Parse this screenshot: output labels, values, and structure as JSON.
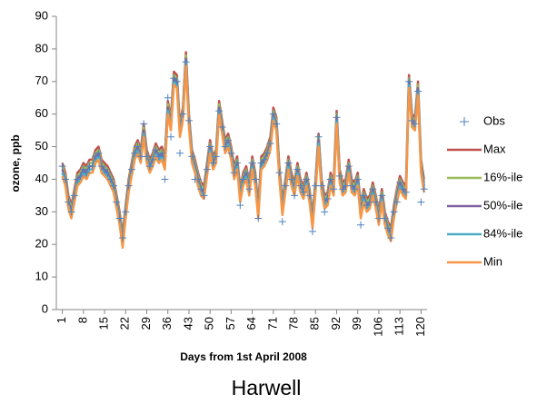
{
  "chart_data": {
    "type": "line",
    "y_label": "ozone, ppb",
    "x_label": "Days from 1st April 2008",
    "caption": "Harwell",
    "x": [
      1,
      2,
      3,
      4,
      5,
      6,
      7,
      8,
      9,
      10,
      11,
      12,
      13,
      14,
      15,
      16,
      17,
      18,
      19,
      20,
      21,
      22,
      23,
      24,
      25,
      26,
      27,
      28,
      29,
      30,
      31,
      32,
      33,
      34,
      35,
      36,
      37,
      38,
      39,
      40,
      41,
      42,
      43,
      44,
      45,
      46,
      47,
      48,
      49,
      50,
      51,
      52,
      53,
      54,
      55,
      56,
      57,
      58,
      59,
      60,
      61,
      62,
      63,
      64,
      65,
      66,
      67,
      68,
      69,
      70,
      71,
      72,
      73,
      74,
      75,
      76,
      77,
      78,
      79,
      80,
      81,
      82,
      83,
      84,
      85,
      86,
      87,
      88,
      89,
      90,
      91,
      92,
      93,
      94,
      95,
      96,
      97,
      98,
      99,
      100,
      101,
      102,
      103,
      104,
      105,
      106,
      107,
      108,
      109,
      110,
      111,
      112,
      113,
      114,
      115,
      116,
      117,
      118,
      119,
      120,
      121
    ],
    "xlim": [
      -1,
      122
    ],
    "xticks": [
      1,
      8,
      15,
      22,
      29,
      36,
      43,
      50,
      57,
      64,
      71,
      78,
      85,
      92,
      99,
      106,
      113,
      120
    ],
    "ylim": [
      0,
      90
    ],
    "yticks": [
      0,
      10,
      20,
      30,
      40,
      50,
      60,
      70,
      80,
      90
    ],
    "grid": false,
    "legend": "right",
    "series": [
      {
        "name": "Obs",
        "mode": "markers",
        "color": "#4f81bd",
        "values": [
          44,
          40,
          33,
          30,
          35,
          40,
          41,
          43,
          42,
          44,
          44,
          47,
          48,
          44,
          43,
          42,
          40,
          38,
          33,
          28,
          22,
          30,
          38,
          43,
          48,
          50,
          47,
          57,
          47,
          44,
          46,
          49,
          47,
          48,
          40,
          65,
          53,
          71,
          70,
          48,
          60,
          76,
          58,
          47,
          40,
          40,
          37,
          35,
          43,
          50,
          45,
          47,
          61,
          56,
          50,
          52,
          48,
          42,
          45,
          32,
          40,
          42,
          37,
          45,
          40,
          28,
          45,
          46,
          48,
          51,
          60,
          57,
          42,
          27,
          38,
          45,
          40,
          35,
          43,
          38,
          36,
          40,
          35,
          24,
          38,
          53,
          38,
          30,
          34,
          40,
          37,
          59,
          41,
          37,
          38,
          44,
          38,
          37,
          40,
          26,
          35,
          32,
          33,
          37,
          33,
          28,
          35,
          28,
          25,
          22,
          30,
          33,
          39,
          37,
          36,
          70,
          58,
          57,
          67,
          33,
          37
        ]
      },
      {
        "name": "Max",
        "mode": "line",
        "color": "#c0504d",
        "values": [
          45,
          42,
          35,
          32,
          37,
          42,
          43,
          45,
          44,
          46,
          46,
          49,
          50,
          46,
          45,
          44,
          42,
          40,
          35,
          30,
          23,
          32,
          40,
          45,
          50,
          52,
          49,
          57,
          49,
          46,
          48,
          51,
          49,
          50,
          47,
          64,
          59,
          73,
          72,
          57,
          62,
          79,
          60,
          49,
          46,
          42,
          39,
          38,
          45,
          52,
          47,
          49,
          64,
          58,
          52,
          54,
          50,
          44,
          47,
          37,
          42,
          44,
          39,
          47,
          42,
          32,
          47,
          48,
          50,
          53,
          62,
          59,
          44,
          33,
          40,
          47,
          42,
          39,
          45,
          40,
          38,
          42,
          37,
          29,
          40,
          54,
          40,
          35,
          36,
          42,
          39,
          61,
          43,
          39,
          40,
          46,
          40,
          39,
          42,
          32,
          37,
          34,
          35,
          39,
          35,
          30,
          37,
          30,
          27,
          25,
          32,
          37,
          41,
          39,
          38,
          72,
          60,
          59,
          70,
          46,
          40
        ]
      },
      {
        "name": "16%-ile",
        "mode": "line",
        "color": "#9bbb59",
        "values": [
          44,
          41,
          34,
          31,
          36,
          41,
          42,
          44,
          43,
          45,
          45,
          48,
          49,
          45,
          44,
          43,
          41,
          39,
          34,
          29,
          22,
          31,
          39,
          44,
          49,
          51,
          48,
          56,
          48,
          45,
          47,
          50,
          48,
          49,
          46,
          63,
          58,
          72,
          71,
          56,
          61,
          78,
          59,
          48,
          45,
          41,
          38,
          37,
          44,
          51,
          46,
          48,
          63,
          57,
          51,
          53,
          49,
          43,
          46,
          36,
          41,
          43,
          38,
          46,
          41,
          31,
          46,
          47,
          49,
          52,
          61,
          58,
          43,
          32,
          39,
          46,
          41,
          38,
          44,
          39,
          37,
          41,
          36,
          28,
          39,
          53,
          39,
          34,
          35,
          41,
          38,
          60,
          42,
          38,
          39,
          45,
          39,
          38,
          41,
          31,
          36,
          33,
          34,
          38,
          34,
          29,
          36,
          29,
          26,
          24,
          31,
          36,
          40,
          38,
          37,
          71,
          59,
          58,
          69,
          45,
          39
        ]
      },
      {
        "name": "50%-ile",
        "mode": "line",
        "color": "#8064a2",
        "values": [
          43,
          40,
          33,
          30,
          35,
          40,
          41,
          43,
          42,
          44,
          44,
          47,
          48,
          44,
          43,
          42,
          40,
          38,
          33,
          28,
          21,
          30,
          38,
          43,
          48,
          50,
          47,
          55,
          47,
          44,
          46,
          49,
          47,
          48,
          45,
          62,
          57,
          71,
          70,
          55,
          60,
          77,
          58,
          47,
          44,
          40,
          37,
          36,
          43,
          50,
          45,
          47,
          62,
          56,
          50,
          52,
          48,
          42,
          45,
          35,
          40,
          42,
          37,
          45,
          40,
          30,
          45,
          46,
          48,
          51,
          60,
          57,
          42,
          31,
          38,
          45,
          40,
          37,
          43,
          38,
          36,
          40,
          35,
          27,
          38,
          52,
          38,
          33,
          34,
          40,
          37,
          59,
          41,
          37,
          38,
          44,
          38,
          37,
          40,
          30,
          35,
          32,
          33,
          37,
          33,
          28,
          35,
          28,
          25,
          23,
          30,
          35,
          39,
          37,
          36,
          70,
          58,
          57,
          68,
          44,
          38
        ]
      },
      {
        "name": "84%-ile",
        "mode": "line",
        "color": "#4bacc6",
        "values": [
          42,
          39,
          32,
          29,
          34,
          39,
          40,
          42,
          41,
          43,
          43,
          46,
          47,
          43,
          42,
          41,
          39,
          37,
          32,
          27,
          20,
          29,
          37,
          42,
          47,
          49,
          46,
          54,
          46,
          43,
          45,
          48,
          46,
          47,
          44,
          61,
          56,
          70,
          69,
          54,
          59,
          76,
          57,
          46,
          43,
          39,
          36,
          35,
          42,
          49,
          44,
          46,
          61,
          55,
          49,
          51,
          47,
          41,
          44,
          34,
          39,
          41,
          36,
          44,
          39,
          29,
          44,
          45,
          47,
          50,
          59,
          56,
          41,
          30,
          37,
          44,
          39,
          36,
          42,
          37,
          35,
          39,
          34,
          26,
          37,
          51,
          37,
          32,
          33,
          39,
          36,
          58,
          40,
          36,
          37,
          43,
          37,
          36,
          39,
          29,
          34,
          31,
          32,
          36,
          32,
          27,
          34,
          27,
          24,
          22,
          29,
          34,
          38,
          36,
          35,
          69,
          57,
          56,
          67,
          43,
          37
        ]
      },
      {
        "name": "Min",
        "mode": "line",
        "color": "#f79646",
        "values": [
          41,
          38,
          31,
          28,
          33,
          38,
          39,
          41,
          40,
          42,
          42,
          45,
          46,
          42,
          41,
          40,
          38,
          36,
          31,
          26,
          19,
          28,
          36,
          41,
          46,
          48,
          45,
          53,
          45,
          42,
          44,
          47,
          45,
          46,
          43,
          60,
          55,
          69,
          68,
          53,
          58,
          75,
          56,
          45,
          42,
          38,
          35,
          34,
          41,
          48,
          43,
          45,
          60,
          54,
          48,
          50,
          46,
          40,
          43,
          33,
          38,
          40,
          35,
          43,
          38,
          28,
          43,
          44,
          46,
          49,
          58,
          55,
          40,
          29,
          36,
          43,
          38,
          35,
          41,
          36,
          34,
          38,
          33,
          25,
          36,
          50,
          36,
          31,
          32,
          38,
          35,
          57,
          39,
          35,
          36,
          42,
          36,
          35,
          38,
          28,
          33,
          30,
          31,
          35,
          31,
          26,
          33,
          26,
          23,
          21,
          28,
          33,
          37,
          35,
          34,
          68,
          56,
          55,
          66,
          42,
          36
        ]
      }
    ]
  }
}
